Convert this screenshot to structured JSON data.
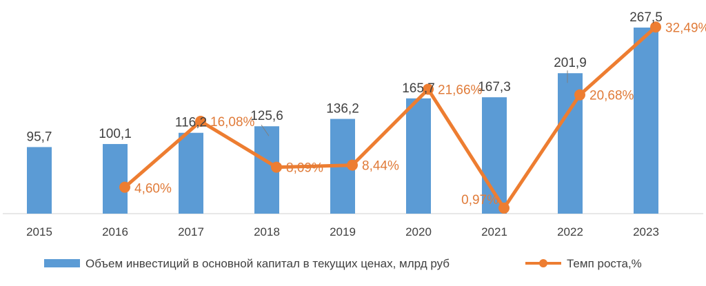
{
  "chart_data": {
    "type": "bar",
    "categories": [
      "2015",
      "2016",
      "2017",
      "2018",
      "2019",
      "2020",
      "2021",
      "2022",
      "2023"
    ],
    "series": [
      {
        "name": "Объем инвестиций в основной капитал в текущих ценах, млрд руб",
        "type": "bar",
        "axis": "left",
        "values": [
          95.7,
          100.1,
          116.2,
          125.6,
          136.2,
          165.7,
          167.3,
          201.9,
          267.5
        ],
        "labels": [
          "95,7",
          "100,1",
          "116,2",
          "125,6",
          "136,2",
          "165,7",
          "167,3",
          "201,9",
          "267,5"
        ],
        "color": "#5B9BD5"
      },
      {
        "name": "Темп роста,%",
        "type": "line",
        "axis": "right",
        "values": [
          null,
          4.6,
          16.08,
          8.09,
          8.44,
          21.66,
          0.97,
          20.68,
          32.49
        ],
        "labels": [
          "",
          "4,60%",
          "16,08%",
          "8,09%",
          "8,44%",
          "21,66%",
          "0,97%",
          "20,68%",
          "32,49%"
        ],
        "color": "#ED7D31"
      }
    ],
    "grid": false,
    "legend_position": "bottom"
  }
}
